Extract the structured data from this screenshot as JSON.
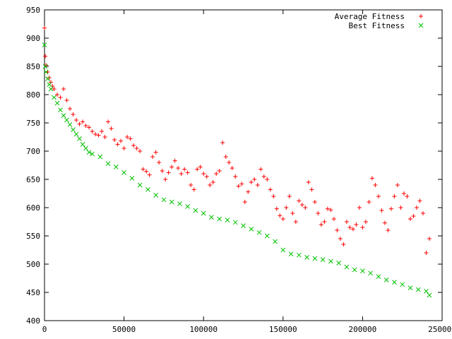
{
  "chart_data": {
    "type": "scatter",
    "title": "",
    "xlabel": "",
    "ylabel": "",
    "xlim": [
      0,
      250000
    ],
    "ylim": [
      400,
      950
    ],
    "xticks": [
      0,
      50000,
      100000,
      150000,
      200000,
      250000
    ],
    "xtick_labels": [
      "0",
      "50000",
      "100000",
      "150000",
      "200000",
      "250000"
    ],
    "yticks": [
      400,
      450,
      500,
      550,
      600,
      650,
      700,
      750,
      800,
      850,
      900,
      950
    ],
    "ytick_labels": [
      "400",
      "450",
      "500",
      "550",
      "600",
      "650",
      "700",
      "750",
      "800",
      "850",
      "900",
      "950"
    ],
    "grid": false,
    "legend": "top-right",
    "series": [
      {
        "name": "Average Fitness",
        "marker": "plus",
        "color": "#ff0000",
        "x": [
          0,
          500,
          1000,
          2000,
          3000,
          4000,
          5000,
          6000,
          8000,
          10000,
          12000,
          14000,
          16000,
          18000,
          20000,
          22000,
          24000,
          26000,
          28000,
          30000,
          32000,
          34000,
          36000,
          38000,
          40000,
          42000,
          44000,
          46000,
          48000,
          50000,
          52000,
          54000,
          56000,
          58000,
          60000,
          62000,
          64000,
          66000,
          68000,
          70000,
          72000,
          74000,
          76000,
          78000,
          80000,
          82000,
          84000,
          86000,
          88000,
          90000,
          92000,
          94000,
          96000,
          98000,
          100000,
          102000,
          104000,
          106000,
          108000,
          110000,
          112000,
          114000,
          116000,
          118000,
          120000,
          122000,
          124000,
          126000,
          128000,
          130000,
          132000,
          134000,
          136000,
          138000,
          140000,
          142000,
          144000,
          146000,
          148000,
          150000,
          152000,
          154000,
          156000,
          158000,
          160000,
          162000,
          164000,
          166000,
          168000,
          170000,
          172000,
          174000,
          176000,
          178000,
          180000,
          182000,
          184000,
          186000,
          188000,
          190000,
          192000,
          194000,
          196000,
          198000,
          200000,
          202000,
          204000,
          206000,
          208000,
          210000,
          212000,
          214000,
          216000,
          218000,
          220000,
          222000,
          224000,
          226000,
          228000,
          230000,
          232000,
          234000,
          236000,
          238000,
          240000,
          242000
        ],
        "y": [
          918,
          868,
          852,
          840,
          830,
          822,
          815,
          810,
          800,
          795,
          810,
          790,
          775,
          765,
          755,
          748,
          752,
          745,
          742,
          735,
          730,
          728,
          735,
          725,
          752,
          740,
          720,
          712,
          718,
          705,
          725,
          722,
          710,
          705,
          700,
          668,
          664,
          658,
          690,
          698,
          680,
          665,
          650,
          662,
          672,
          683,
          670,
          660,
          668,
          662,
          640,
          632,
          668,
          672,
          660,
          655,
          640,
          645,
          660,
          665,
          715,
          690,
          680,
          670,
          655,
          638,
          642,
          610,
          628,
          645,
          650,
          640,
          668,
          655,
          650,
          632,
          620,
          598,
          586,
          580,
          600,
          620,
          590,
          575,
          612,
          605,
          600,
          645,
          632,
          610,
          590,
          570,
          575,
          598,
          596,
          580,
          560,
          545,
          535,
          575,
          565,
          562,
          570,
          600,
          565,
          575,
          610,
          652,
          640,
          620,
          595,
          573,
          560,
          598,
          620,
          640,
          600,
          625,
          620,
          580,
          585,
          600,
          612,
          590,
          520,
          545
        ]
      },
      {
        "name": "Best Fitness",
        "marker": "cross",
        "color": "#00c000",
        "x": [
          0,
          500,
          1000,
          2000,
          3000,
          4000,
          6000,
          8000,
          10000,
          12000,
          14000,
          16000,
          18000,
          20000,
          22000,
          24000,
          26000,
          28000,
          30000,
          35000,
          40000,
          45000,
          50000,
          55000,
          60000,
          65000,
          70000,
          75000,
          80000,
          85000,
          90000,
          95000,
          100000,
          105000,
          110000,
          115000,
          120000,
          125000,
          130000,
          135000,
          140000,
          145000,
          150000,
          155000,
          160000,
          165000,
          170000,
          175000,
          180000,
          185000,
          190000,
          195000,
          200000,
          205000,
          210000,
          215000,
          220000,
          225000,
          230000,
          235000,
          240000,
          242000
        ],
        "y": [
          888,
          850,
          840,
          828,
          818,
          810,
          795,
          785,
          773,
          763,
          755,
          747,
          738,
          730,
          722,
          712,
          705,
          698,
          695,
          690,
          678,
          672,
          662,
          652,
          640,
          632,
          622,
          614,
          610,
          607,
          602,
          595,
          590,
          583,
          580,
          578,
          574,
          568,
          562,
          556,
          550,
          540,
          525,
          518,
          516,
          512,
          510,
          508,
          505,
          502,
          495,
          490,
          488,
          484,
          478,
          472,
          468,
          464,
          458,
          455,
          452,
          445
        ]
      }
    ]
  }
}
